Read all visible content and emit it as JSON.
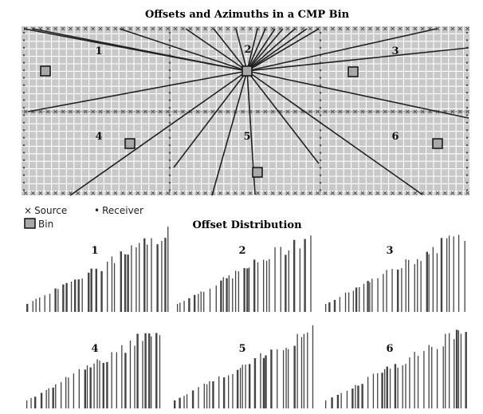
{
  "map": {
    "title": "Offsets and Azimuths in a CMP Bin",
    "blocks": [
      {
        "label": "1"
      },
      {
        "label": "2"
      },
      {
        "label": "3"
      },
      {
        "label": "4"
      },
      {
        "label": "5"
      },
      {
        "label": "6"
      }
    ],
    "legend": {
      "source_symbol": "×",
      "source": "Source",
      "receiver_symbol": "•",
      "receiver": "Receiver",
      "bin": "Bin"
    },
    "colors": {
      "grid_fill": "#c8c8c8",
      "grid_line": "#ffffff",
      "ray": "#222222",
      "bin_fill": "#a8a8a8"
    }
  },
  "offset_distribution": {
    "title": "Offset Distribution",
    "panels": [
      {
        "label": "1"
      },
      {
        "label": "2"
      },
      {
        "label": "3"
      },
      {
        "label": "4"
      },
      {
        "label": "5"
      },
      {
        "label": "6"
      }
    ]
  }
}
